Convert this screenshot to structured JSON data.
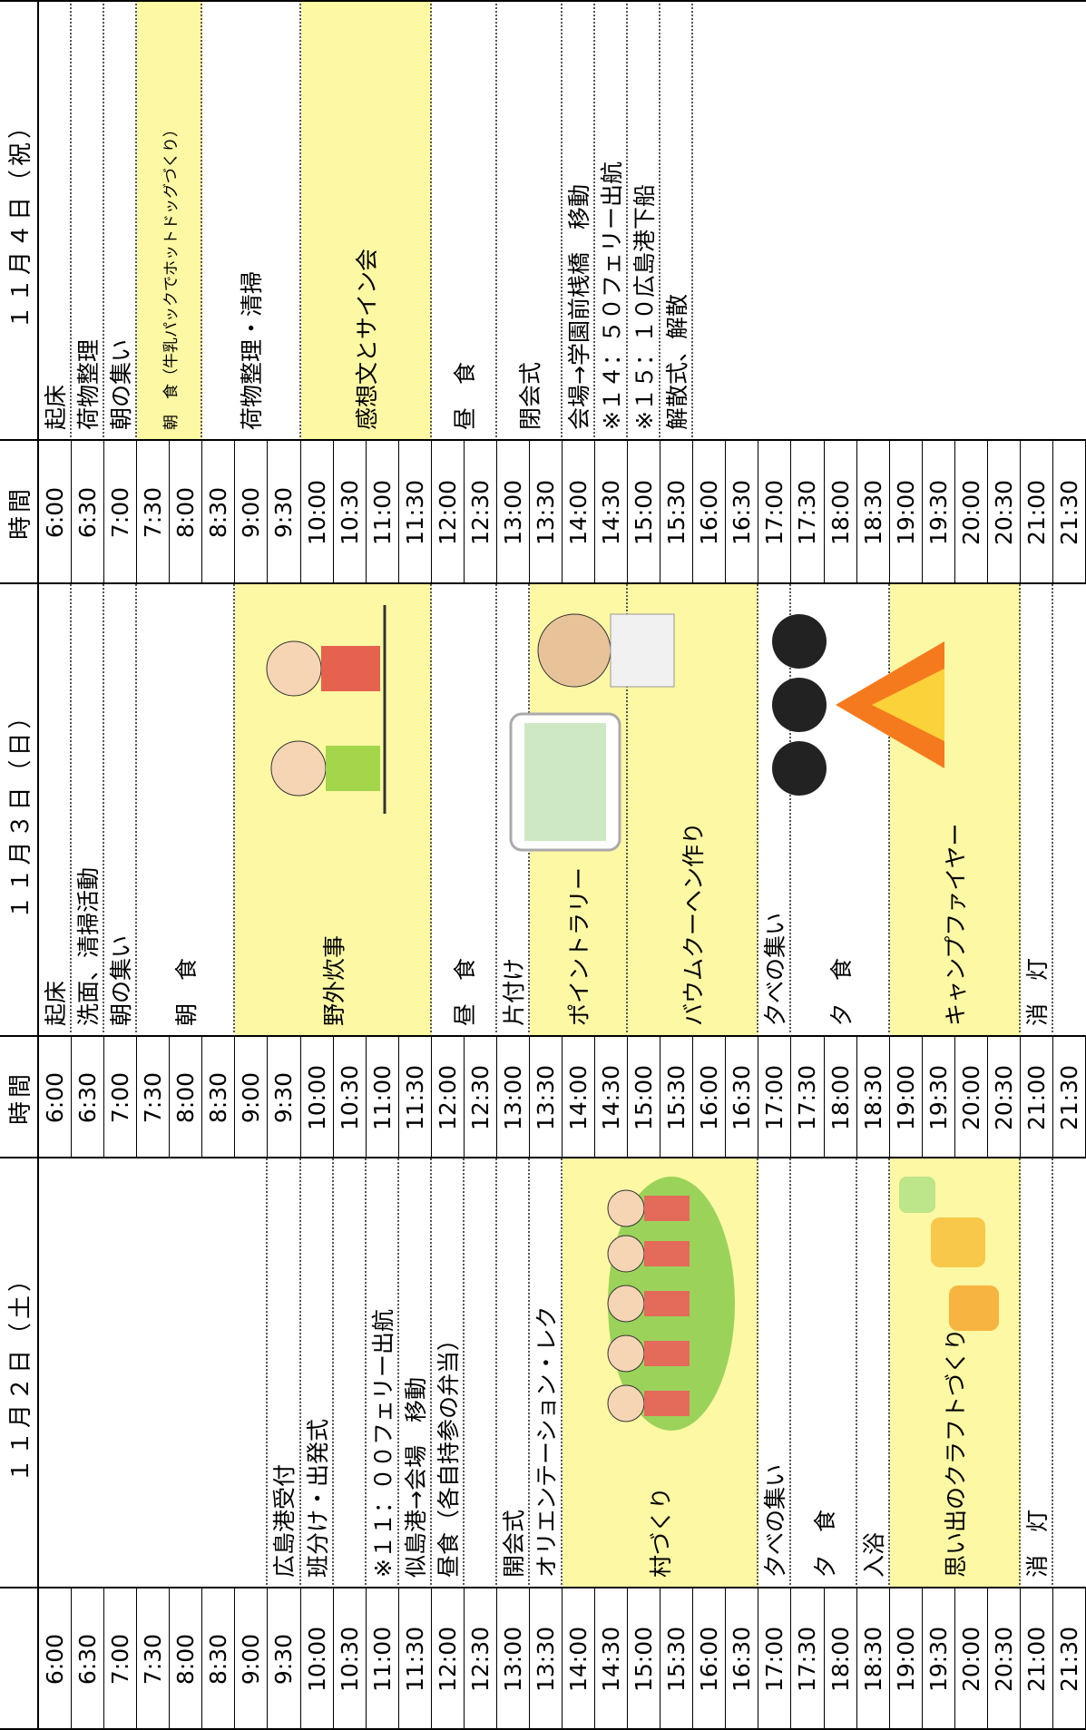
{
  "time_header": "時間",
  "times": [
    "6:00",
    "6:30",
    "7:00",
    "7:30",
    "8:00",
    "8:30",
    "9:00",
    "9:30",
    "10:00",
    "10:30",
    "11:00",
    "11:30",
    "12:00",
    "12:30",
    "13:00",
    "13:30",
    "14:00",
    "14:30",
    "15:00",
    "15:30",
    "16:00",
    "16:30",
    "17:00",
    "17:30",
    "18:00",
    "18:30",
    "19:00",
    "19:30",
    "20:00",
    "20:30",
    "21:00",
    "21:30"
  ],
  "days": [
    {
      "header": "１１月２日（土）",
      "items": [
        {
          "start": "9:30",
          "slots": 1,
          "text": "広島港受付"
        },
        {
          "start": "10:00",
          "slots": 1,
          "text": "班分け・出発式"
        },
        {
          "start": "11:00",
          "slots": 1,
          "text": "※１１：００フェリー出航"
        },
        {
          "start": "11:30",
          "slots": 1,
          "text": "似島港→会場　移動"
        },
        {
          "start": "12:00",
          "slots": 1,
          "text": "昼食（各自持参の弁当）"
        },
        {
          "start": "13:00",
          "slots": 1,
          "text": "開会式"
        },
        {
          "start": "13:30",
          "slots": 1,
          "text": "オリエンテーション・レク"
        },
        {
          "start": "14:00",
          "slots": 6,
          "text": "村づくり",
          "highlight": true
        },
        {
          "start": "17:00",
          "slots": 1,
          "text": "夕べの集い"
        },
        {
          "start": "17:30",
          "slots": 2,
          "text": "夕　食"
        },
        {
          "start": "18:30",
          "slots": 1,
          "text": "入浴"
        },
        {
          "start": "19:00",
          "slots": 4,
          "text": "思い出のクラフトづくり",
          "highlight": true
        },
        {
          "start": "21:00",
          "slots": 1,
          "text": "消　灯"
        }
      ]
    },
    {
      "header": "１１月３日（日）",
      "items": [
        {
          "start": "6:00",
          "slots": 1,
          "text": "起床"
        },
        {
          "start": "6:30",
          "slots": 1,
          "text": "洗面、清掃活動"
        },
        {
          "start": "7:00",
          "slots": 1,
          "text": "朝の集い"
        },
        {
          "start": "7:30",
          "slots": 3,
          "text": "朝　食"
        },
        {
          "start": "9:00",
          "slots": 6,
          "text": "野外炊事",
          "highlight": true
        },
        {
          "start": "12:00",
          "slots": 2,
          "text": "昼　食"
        },
        {
          "start": "13:00",
          "slots": 1,
          "text": "片付け"
        },
        {
          "start": "13:30",
          "slots": 3,
          "text": "ポイントラリー",
          "highlight": true
        },
        {
          "start": "15:00",
          "slots": 4,
          "text": "バウムクーヘン作り",
          "highlight": true
        },
        {
          "start": "17:00",
          "slots": 1,
          "text": "夕べの集い"
        },
        {
          "start": "17:30",
          "slots": 3,
          "text": "夕　食"
        },
        {
          "start": "19:00",
          "slots": 4,
          "text": "キャンプファイヤー",
          "highlight": true
        },
        {
          "start": "21:00",
          "slots": 1,
          "text": "消　灯"
        }
      ]
    },
    {
      "header": "１１月４日（祝）",
      "items": [
        {
          "start": "6:00",
          "slots": 1,
          "text": "起床"
        },
        {
          "start": "6:30",
          "slots": 1,
          "text": "荷物整理"
        },
        {
          "start": "7:00",
          "slots": 1,
          "text": "朝の集い"
        },
        {
          "start": "7:30",
          "slots": 2,
          "text": "朝　食（牛乳パックでホットドッグづくり）",
          "highlight": true
        },
        {
          "start": "8:30",
          "slots": 3,
          "text": "荷物整理・清掃"
        },
        {
          "start": "10:00",
          "slots": 4,
          "text": "感想文とサイン会",
          "highlight": true
        },
        {
          "start": "12:00",
          "slots": 2,
          "text": "昼　食"
        },
        {
          "start": "13:00",
          "slots": 2,
          "text": "閉会式"
        },
        {
          "start": "14:00",
          "slots": 1,
          "text": "会場→学園前桟橋　移動"
        },
        {
          "start": "14:30",
          "slots": 1,
          "text": "※１４：５０フェリー出航"
        },
        {
          "start": "15:00",
          "slots": 1,
          "text": "※１５：１０広島港下船"
        },
        {
          "start": "15:30",
          "slots": 1,
          "text": "解散式、解散"
        }
      ]
    }
  ]
}
